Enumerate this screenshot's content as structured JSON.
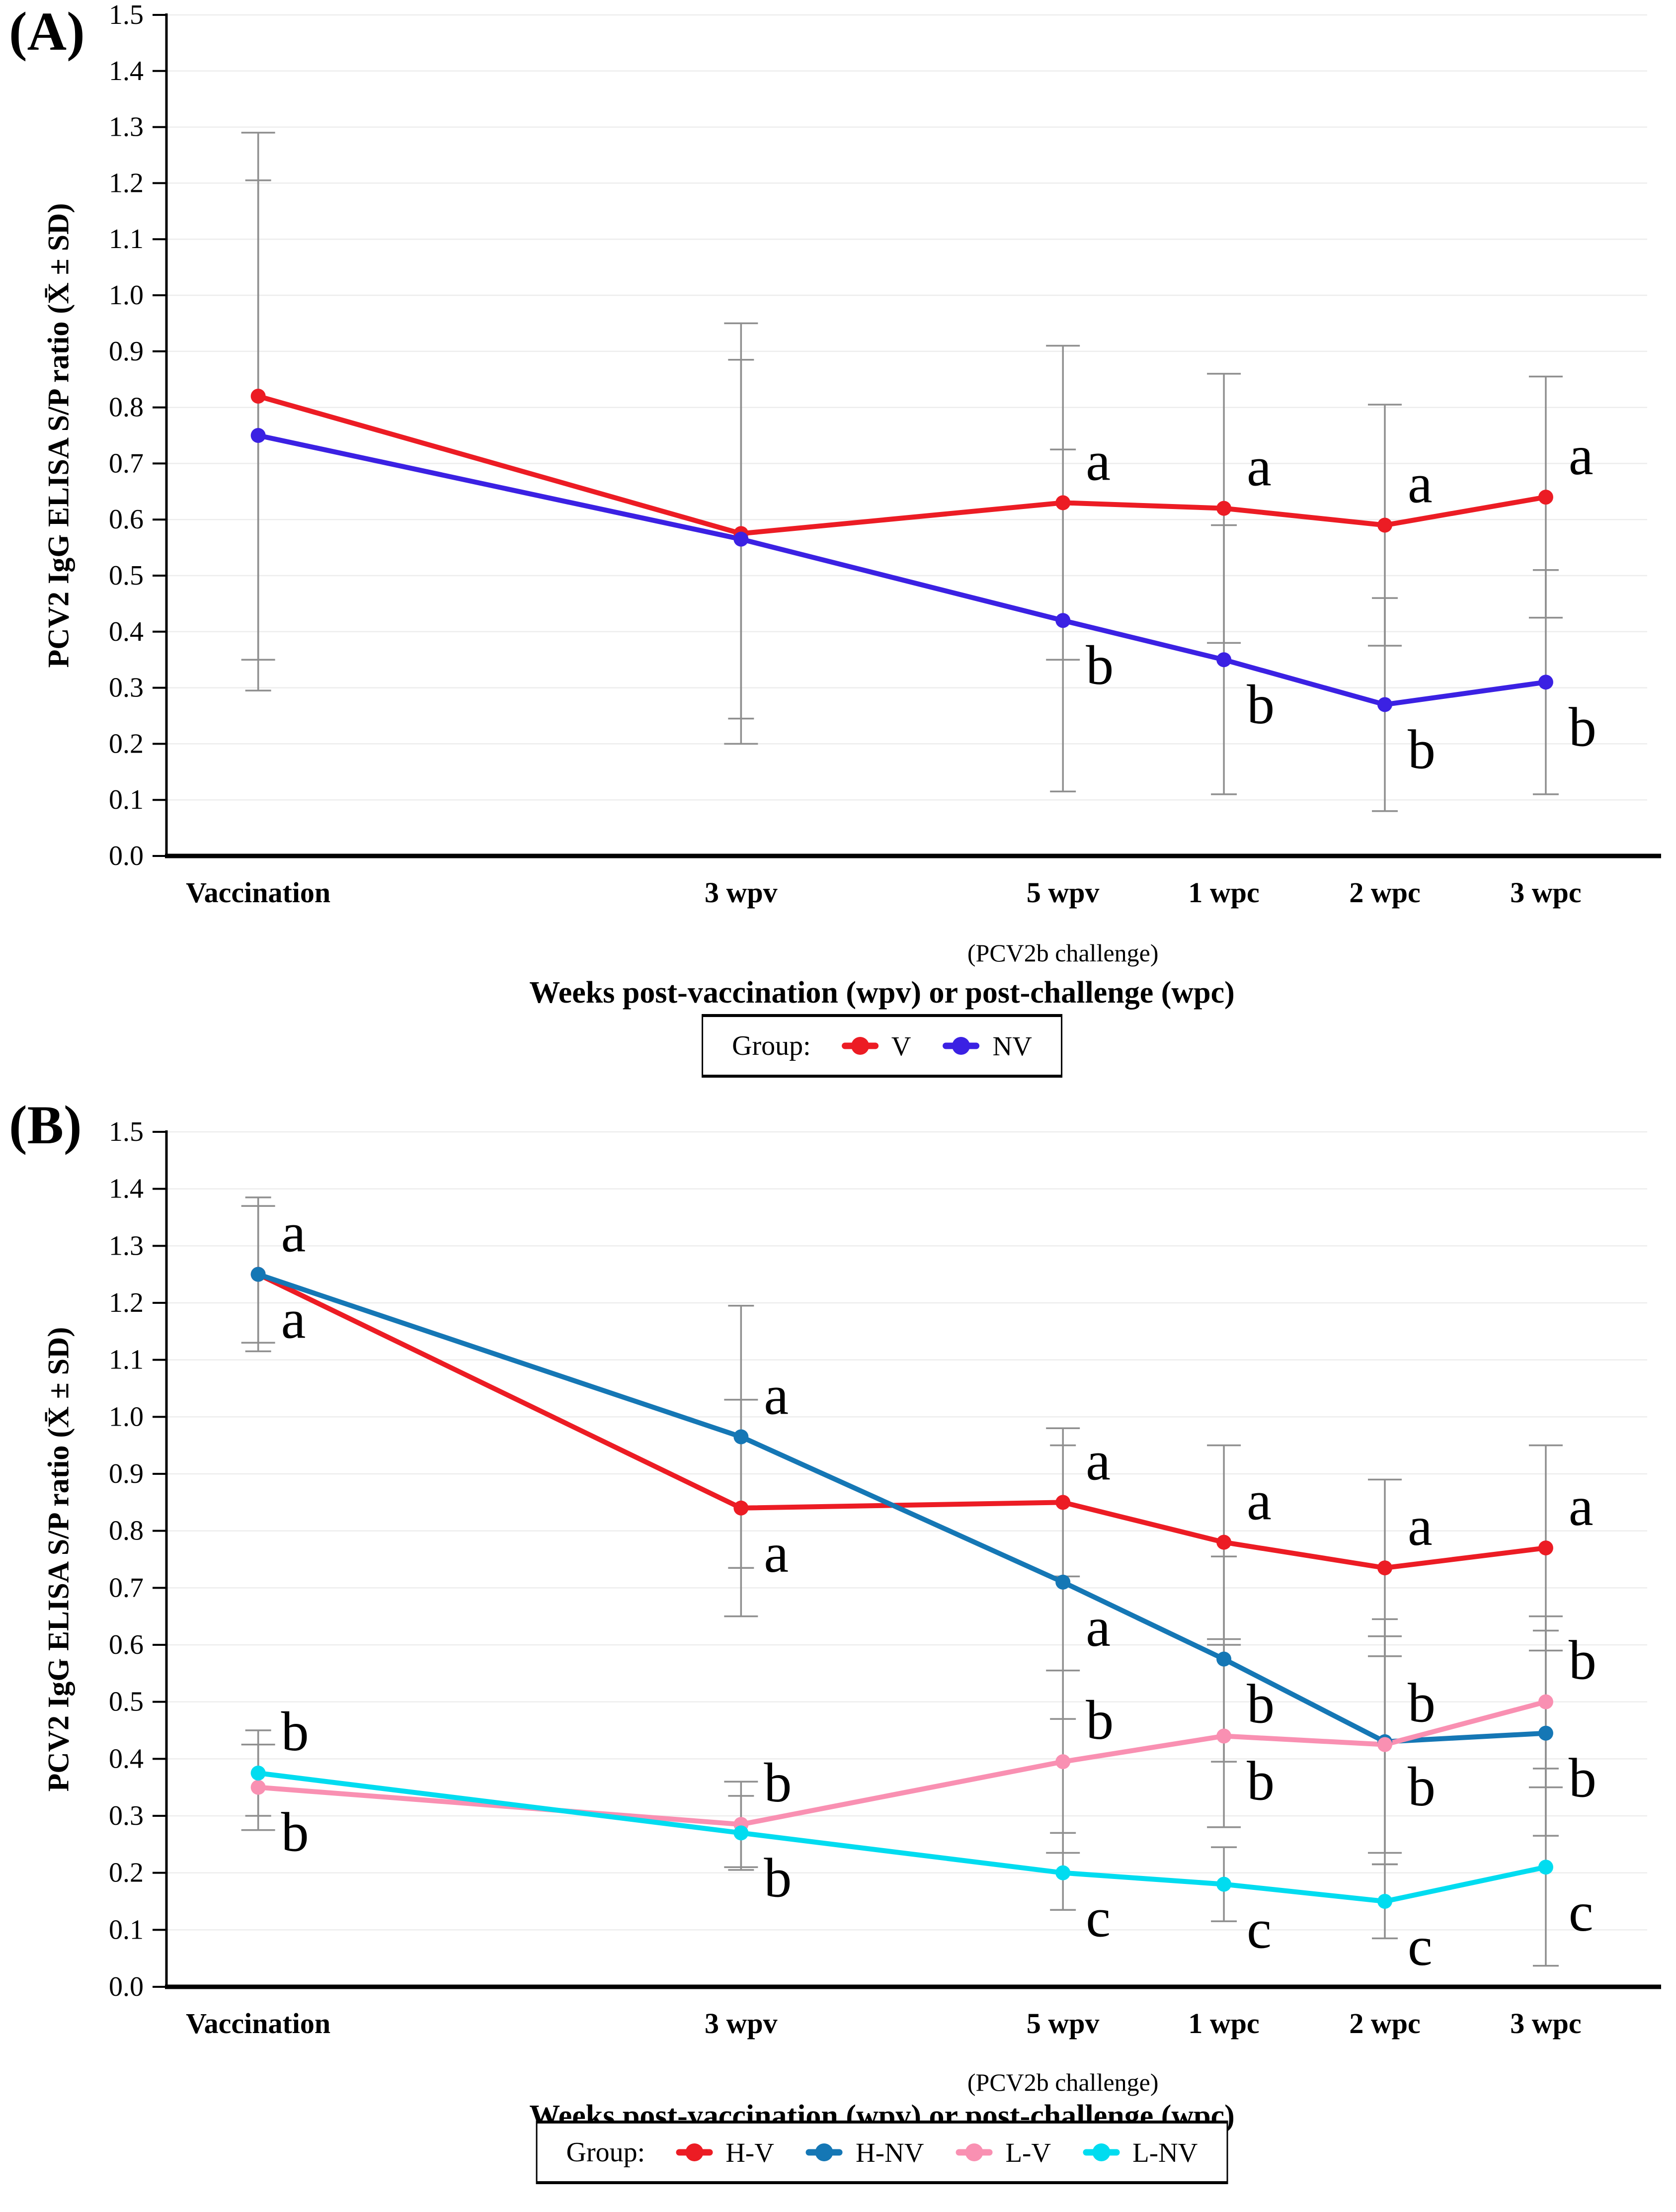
{
  "figure": {
    "background": "#FFFFFF",
    "grid_color": "#EDEDED",
    "axis_color": "#000000",
    "error_bar_color": "#8F8F8F"
  },
  "chart_data": [
    {
      "type": "line",
      "panel_label": "(A)",
      "ylabel": "PCV2 IgG ELISA S/P ratio (X̄ ± SD)",
      "xlabel": "Weeks post-vaccination (wpv) or post-challenge (wpc)",
      "ylim": [
        0.0,
        1.5
      ],
      "ytick_step": 0.1,
      "x_domain_weeks": [
        -0.57,
        8.63
      ],
      "grid": "horizontal",
      "legend_title": "Group:",
      "legend_position": "bottom",
      "categories": [
        {
          "label": "Vaccination",
          "week": 0
        },
        {
          "label": "3 wpv",
          "week": 3
        },
        {
          "label": "5 wpv",
          "week": 5,
          "sublabel": "(PCV2b challenge)"
        },
        {
          "label": "1 wpc",
          "week": 6
        },
        {
          "label": "2 wpc",
          "week": 7
        },
        {
          "label": "3 wpc",
          "week": 8
        }
      ],
      "series": [
        {
          "name": "V",
          "color": "#EC1C24",
          "cap_half_width": 34,
          "values": [
            0.82,
            0.575,
            0.63,
            0.62,
            0.59,
            0.64
          ],
          "sd_hi": [
            1.29,
            0.95,
            0.91,
            0.86,
            0.805,
            0.855
          ],
          "sd_lo": [
            0.35,
            0.2,
            0.35,
            0.38,
            0.375,
            0.425
          ],
          "letters": [
            null,
            null,
            "a",
            "a",
            "a",
            "a"
          ],
          "letter_pos": [
            null,
            null,
            "above",
            "above",
            "above",
            "above"
          ]
        },
        {
          "name": "NV",
          "color": "#3B21E3",
          "cap_half_width": 26,
          "values": [
            0.75,
            0.565,
            0.42,
            0.35,
            0.27,
            0.31
          ],
          "sd_hi": [
            1.205,
            0.885,
            0.725,
            0.59,
            0.46,
            0.51
          ],
          "sd_lo": [
            0.295,
            0.245,
            0.115,
            0.11,
            0.08,
            0.11
          ],
          "letters": [
            null,
            null,
            "b",
            "b",
            "b",
            "b"
          ],
          "letter_pos": [
            null,
            null,
            "below",
            "below",
            "below",
            "below"
          ]
        }
      ]
    },
    {
      "type": "line",
      "panel_label": "(B)",
      "ylabel": "PCV2 IgG ELISA S/P ratio (X̄ ± SD)",
      "xlabel": "Weeks post-vaccination (wpv) or post-challenge (wpc)",
      "ylim": [
        0.0,
        1.5
      ],
      "ytick_step": 0.1,
      "x_domain_weeks": [
        -0.57,
        8.63
      ],
      "grid": "horizontal",
      "legend_title": "Group:",
      "legend_position": "bottom",
      "categories": [
        {
          "label": "Vaccination",
          "week": 0
        },
        {
          "label": "3 wpv",
          "week": 3
        },
        {
          "label": "5 wpv",
          "week": 5,
          "sublabel": "(PCV2b challenge)"
        },
        {
          "label": "1 wpc",
          "week": 6
        },
        {
          "label": "2 wpc",
          "week": 7
        },
        {
          "label": "3 wpc",
          "week": 8
        }
      ],
      "series": [
        {
          "name": "H-V",
          "color": "#EC1C24",
          "cap_half_width": 34,
          "values": [
            1.25,
            0.84,
            0.85,
            0.78,
            0.735,
            0.77
          ],
          "sd_hi": [
            1.37,
            1.03,
            0.98,
            0.95,
            0.89,
            0.95
          ],
          "sd_lo": [
            1.13,
            0.65,
            0.72,
            0.61,
            0.58,
            0.59
          ],
          "letters": [
            "a",
            "a",
            "a",
            "a",
            "a",
            "a"
          ],
          "letter_pos": [
            "below",
            "below",
            "above",
            "above",
            "above",
            "above"
          ]
        },
        {
          "name": "H-NV",
          "color": "#1577B5",
          "cap_half_width": 26,
          "values": [
            1.25,
            0.965,
            0.71,
            0.575,
            0.43,
            0.445
          ],
          "sd_hi": [
            1.385,
            1.195,
            0.95,
            0.755,
            0.645,
            0.625
          ],
          "sd_lo": [
            1.115,
            0.735,
            0.47,
            0.395,
            0.215,
            0.265
          ],
          "letters": [
            "a",
            "a",
            "a",
            "b",
            "b",
            "b"
          ],
          "letter_pos": [
            "above",
            "above",
            "below",
            "below",
            "below",
            "below"
          ]
        },
        {
          "name": "L-V",
          "color": "#F990B2",
          "cap_half_width": 34,
          "values": [
            0.35,
            0.285,
            0.395,
            0.44,
            0.425,
            0.5
          ],
          "sd_hi": [
            0.425,
            0.36,
            0.555,
            0.6,
            0.615,
            0.65
          ],
          "sd_lo": [
            0.275,
            0.21,
            0.235,
            0.28,
            0.235,
            0.35
          ],
          "letters": [
            "b",
            "b",
            "b",
            "b",
            "b",
            "b"
          ],
          "letter_pos": [
            "below",
            "above",
            "above",
            "below",
            "above",
            "above"
          ]
        },
        {
          "name": "L-NV",
          "color": "#00DCF0",
          "cap_half_width": 26,
          "values": [
            0.375,
            0.27,
            0.2,
            0.18,
            0.15,
            0.21
          ],
          "sd_hi": [
            0.45,
            0.335,
            0.27,
            0.245,
            0.215,
            0.383
          ],
          "sd_lo": [
            0.3,
            0.205,
            0.135,
            0.115,
            0.085,
            0.037
          ],
          "letters": [
            "b",
            "b",
            "c",
            "c",
            "c",
            "c"
          ],
          "letter_pos": [
            "above",
            "below",
            "below",
            "below",
            "below",
            "below"
          ]
        }
      ]
    }
  ]
}
